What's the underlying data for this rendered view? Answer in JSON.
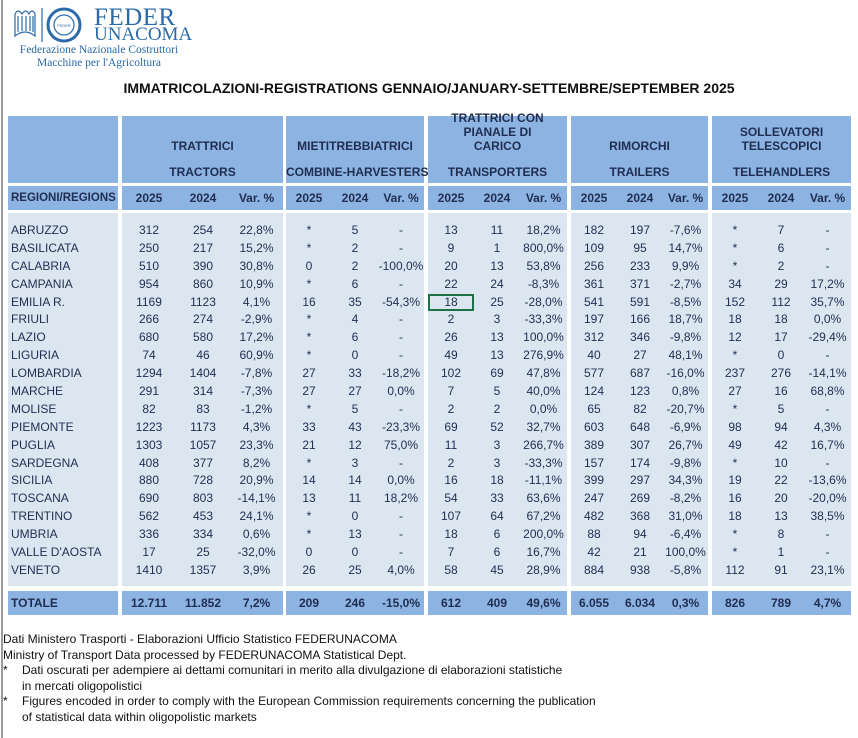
{
  "logo": {
    "feder": "FEDER",
    "unacoma": "UNACOMA",
    "line1": "Federazione Nazionale Costruttori",
    "line2": "Macchine per l'Agricoltura",
    "badge": "FEDER UNACOMA"
  },
  "title": "IMMATRICOLAZIONI-REGISTRATIONS GENNAIO/JANUARY-SETTEMBRE/SEPTEMBER 2025",
  "groups": [
    {
      "it": "TRATTRICI",
      "en": "TRACTORS"
    },
    {
      "it": "MIETITREBBIATRICI",
      "en": "COMBINE-HARVESTERS"
    },
    {
      "it": "TRATTRICI CON PIANALE DI CARICO",
      "en": "TRANSPORTERS"
    },
    {
      "it": "RIMORCHI",
      "en": "TRAILERS"
    },
    {
      "it": "SOLLEVATORI TELESCOPICI",
      "en": "TELEHANDLERS"
    }
  ],
  "region_header": "REGIONI/REGIONS",
  "subheaders": [
    "2025",
    "2024",
    "Var. %"
  ],
  "rows": [
    [
      "ABRUZZO",
      "312",
      "254",
      "22,8%",
      "*",
      "5",
      "-",
      "13",
      "11",
      "18,2%",
      "182",
      "197",
      "-7,6%",
      "*",
      "7",
      "-"
    ],
    [
      "BASILICATA",
      "250",
      "217",
      "15,2%",
      "*",
      "2",
      "-",
      "9",
      "1",
      "800,0%",
      "109",
      "95",
      "14,7%",
      "*",
      "6",
      "-"
    ],
    [
      "CALABRIA",
      "510",
      "390",
      "30,8%",
      "0",
      "2",
      "-100,0%",
      "20",
      "13",
      "53,8%",
      "256",
      "233",
      "9,9%",
      "*",
      "2",
      "-"
    ],
    [
      "CAMPANIA",
      "954",
      "860",
      "10,9%",
      "*",
      "6",
      "-",
      "22",
      "24",
      "-8,3%",
      "361",
      "371",
      "-2,7%",
      "34",
      "29",
      "17,2%"
    ],
    [
      "EMILIA R.",
      "1169",
      "1123",
      "4,1%",
      "16",
      "35",
      "-54,3%",
      "18",
      "25",
      "-28,0%",
      "541",
      "591",
      "-8,5%",
      "152",
      "112",
      "35,7%"
    ],
    [
      "FRIULI",
      "266",
      "274",
      "-2,9%",
      "*",
      "4",
      "-",
      "2",
      "3",
      "-33,3%",
      "197",
      "166",
      "18,7%",
      "18",
      "18",
      "0,0%"
    ],
    [
      "LAZIO",
      "680",
      "580",
      "17,2%",
      "*",
      "6",
      "-",
      "26",
      "13",
      "100,0%",
      "312",
      "346",
      "-9,8%",
      "12",
      "17",
      "-29,4%"
    ],
    [
      "LIGURIA",
      "74",
      "46",
      "60,9%",
      "*",
      "0",
      "-",
      "49",
      "13",
      "276,9%",
      "40",
      "27",
      "48,1%",
      "*",
      "0",
      "-"
    ],
    [
      "LOMBARDIA",
      "1294",
      "1404",
      "-7,8%",
      "27",
      "33",
      "-18,2%",
      "102",
      "69",
      "47,8%",
      "577",
      "687",
      "-16,0%",
      "237",
      "276",
      "-14,1%"
    ],
    [
      "MARCHE",
      "291",
      "314",
      "-7,3%",
      "27",
      "27",
      "0,0%",
      "7",
      "5",
      "40,0%",
      "124",
      "123",
      "0,8%",
      "27",
      "16",
      "68,8%"
    ],
    [
      "MOLISE",
      "82",
      "83",
      "-1,2%",
      "*",
      "5",
      "-",
      "2",
      "2",
      "0,0%",
      "65",
      "82",
      "-20,7%",
      "*",
      "5",
      "-"
    ],
    [
      "PIEMONTE",
      "1223",
      "1173",
      "4,3%",
      "33",
      "43",
      "-23,3%",
      "69",
      "52",
      "32,7%",
      "603",
      "648",
      "-6,9%",
      "98",
      "94",
      "4,3%"
    ],
    [
      "PUGLIA",
      "1303",
      "1057",
      "23,3%",
      "21",
      "12",
      "75,0%",
      "11",
      "3",
      "266,7%",
      "389",
      "307",
      "26,7%",
      "49",
      "42",
      "16,7%"
    ],
    [
      "SARDEGNA",
      "408",
      "377",
      "8,2%",
      "*",
      "3",
      "-",
      "2",
      "3",
      "-33,3%",
      "157",
      "174",
      "-9,8%",
      "*",
      "10",
      "-"
    ],
    [
      "SICILIA",
      "880",
      "728",
      "20,9%",
      "14",
      "14",
      "0,0%",
      "16",
      "18",
      "-11,1%",
      "399",
      "297",
      "34,3%",
      "19",
      "22",
      "-13,6%"
    ],
    [
      "TOSCANA",
      "690",
      "803",
      "-14,1%",
      "13",
      "11",
      "18,2%",
      "54",
      "33",
      "63,6%",
      "247",
      "269",
      "-8,2%",
      "16",
      "20",
      "-20,0%"
    ],
    [
      "TRENTINO",
      "562",
      "453",
      "24,1%",
      "*",
      "0",
      "-",
      "107",
      "64",
      "67,2%",
      "482",
      "368",
      "31,0%",
      "18",
      "13",
      "38,5%"
    ],
    [
      "UMBRIA",
      "336",
      "334",
      "0,6%",
      "*",
      "13",
      "-",
      "18",
      "6",
      "200,0%",
      "88",
      "94",
      "-6,4%",
      "*",
      "8",
      "-"
    ],
    [
      "VALLE D'AOSTA",
      "17",
      "25",
      "-32,0%",
      "0",
      "0",
      "-",
      "7",
      "6",
      "16,7%",
      "42",
      "21",
      "100,0%",
      "*",
      "1",
      "-"
    ],
    [
      "VENETO",
      "1410",
      "1357",
      "3,9%",
      "26",
      "25",
      "4,0%",
      "58",
      "45",
      "28,9%",
      "884",
      "938",
      "-5,8%",
      "112",
      "91",
      "23,1%"
    ]
  ],
  "total": [
    "TOTALE",
    "12.711",
    "11.852",
    "7,2%",
    "209",
    "246",
    "-15,0%",
    "612",
    "409",
    "49,6%",
    "6.055",
    "6.034",
    "0,3%",
    "826",
    "789",
    "4,7%"
  ],
  "notes": {
    "line1": "Dati Ministero Trasporti - Elaborazioni Ufficio Statistico FEDERUNACOMA",
    "line2": "Ministry of Transport Data processed by FEDERUNACOMA Statistical Dept.",
    "star": "*",
    "note_it": "Dati oscurati per adempiere ai dettami comunitari in merito alla divulgazione di elaborazioni statistiche",
    "note_it2": "in mercati oligopolistici",
    "note_en": "Figures encoded in order to comply with the European Commission requirements concerning the publication",
    "note_en2": "of statistical data within oligopolistic markets"
  },
  "selected_cell": {
    "row": 4,
    "col": 7
  }
}
